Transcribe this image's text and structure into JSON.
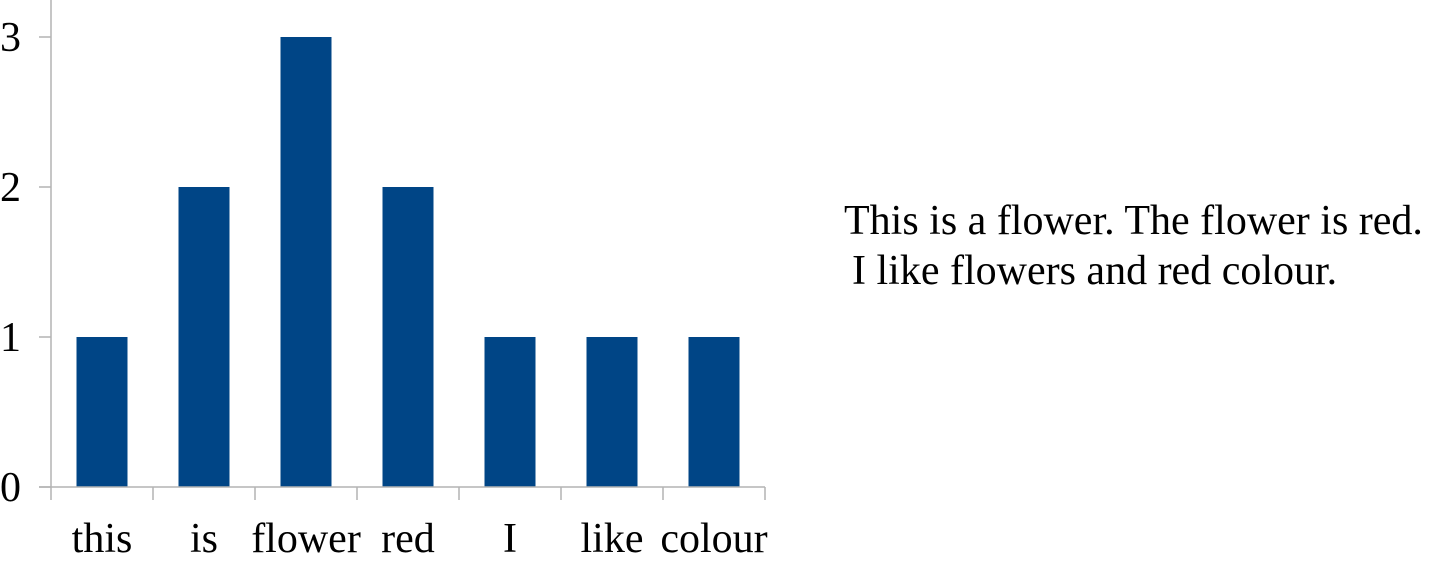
{
  "chart_data": {
    "type": "bar",
    "categories": [
      "this",
      "is",
      "flower",
      "red",
      "I",
      "like",
      "colour"
    ],
    "values": [
      1,
      2,
      3,
      2,
      1,
      1,
      1
    ],
    "title": "",
    "xlabel": "",
    "ylabel": "",
    "ylim": [
      0,
      3
    ],
    "yticks": [
      "0",
      "1",
      "2",
      "3"
    ],
    "grid": false,
    "legend": "none",
    "bar_color": "#004586",
    "axis_color": "#b3b3b3"
  },
  "caption": {
    "line1": "This is a flower. The flower is red.",
    "line2": "I like flowers and red colour."
  }
}
